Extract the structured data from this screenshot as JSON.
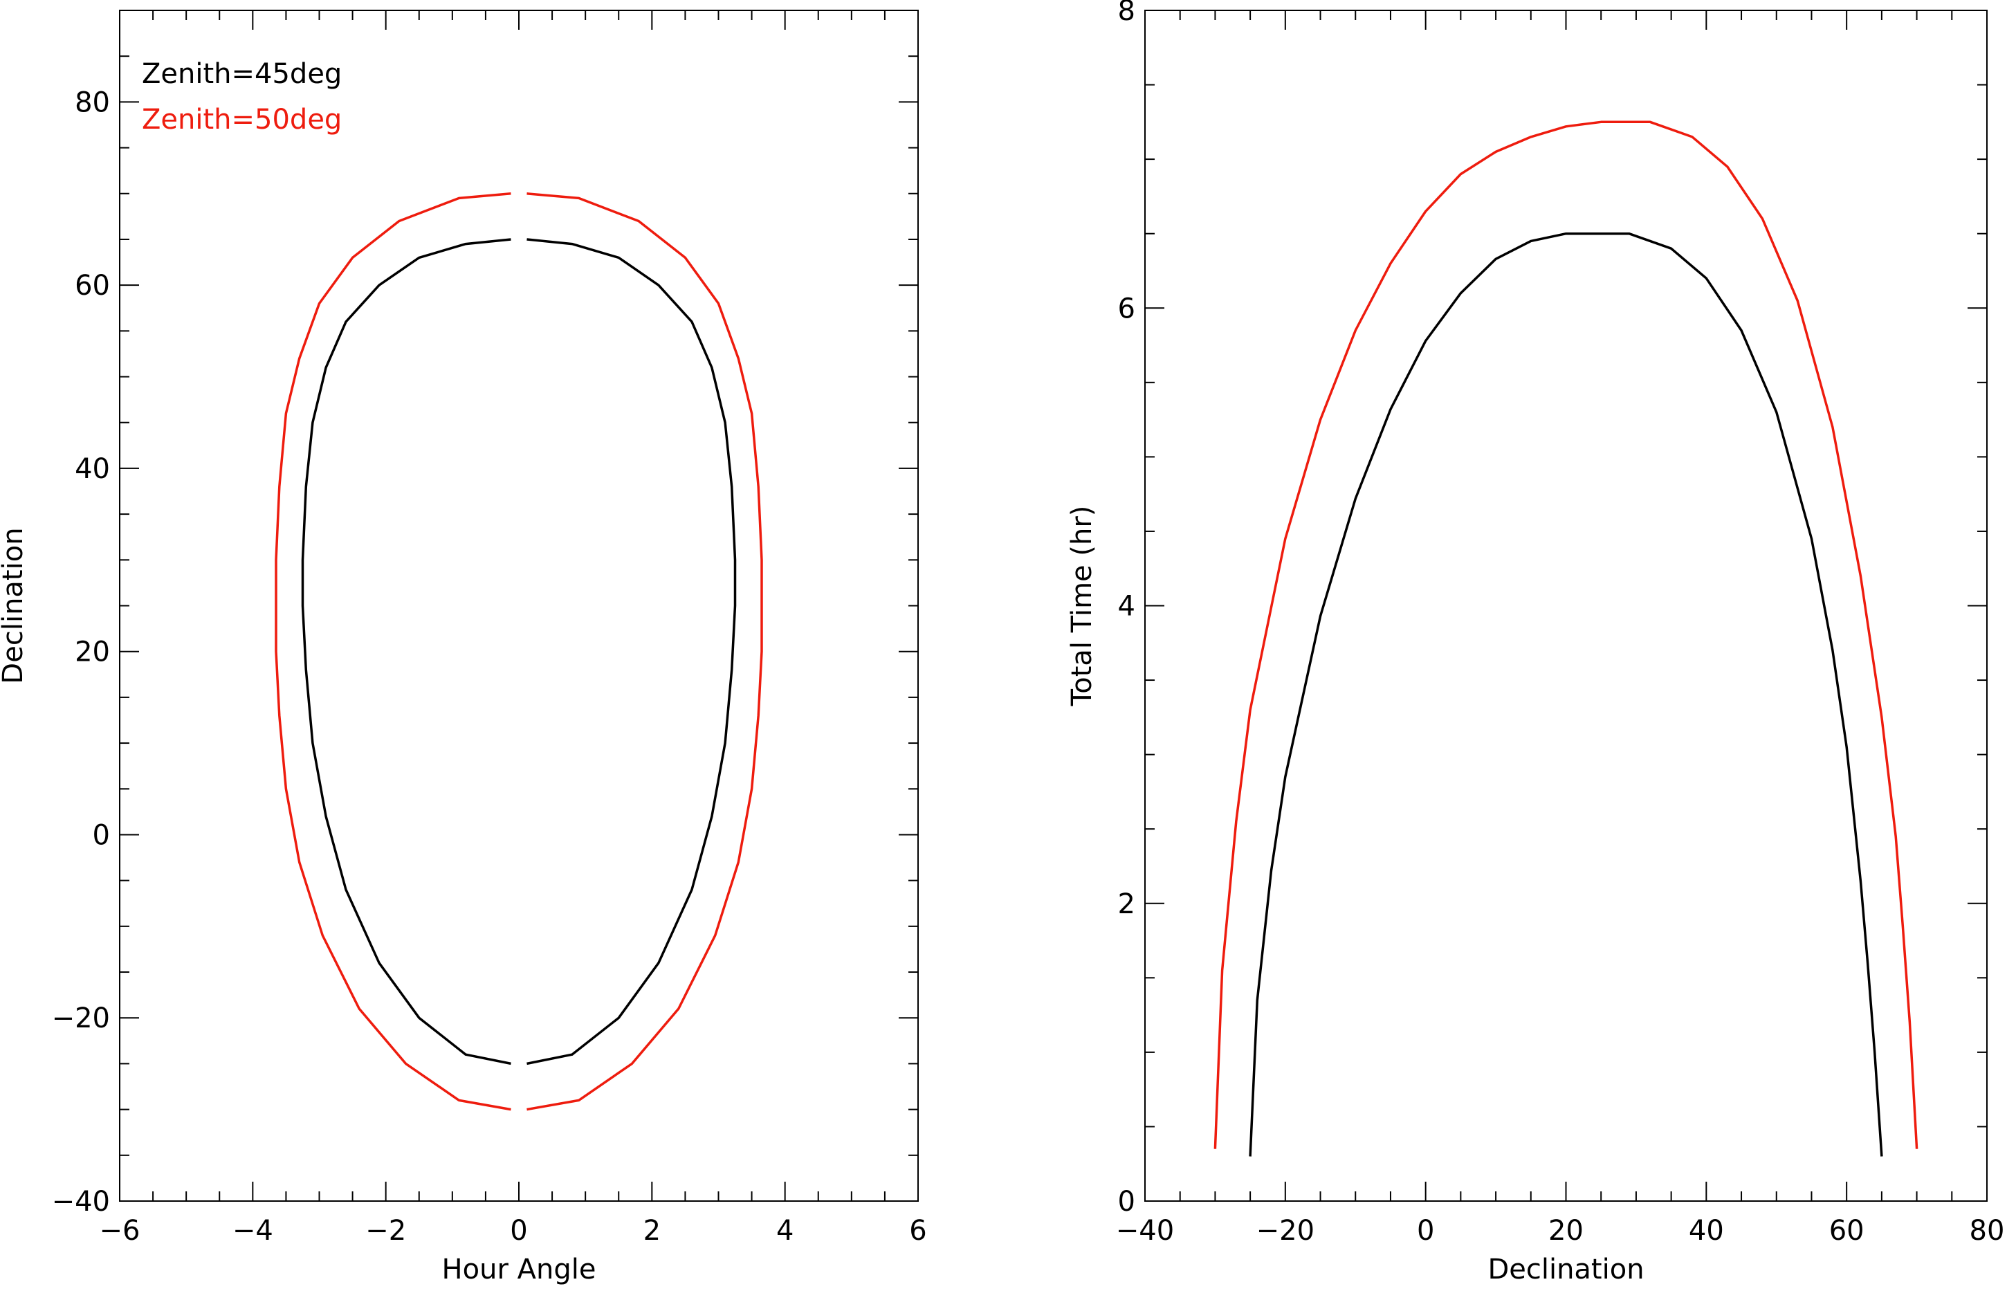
{
  "chart_data": [
    {
      "type": "line",
      "title": "",
      "xlabel": "Hour Angle",
      "ylabel": "Declination",
      "xlim": [
        -6,
        6
      ],
      "ylim": [
        -40,
        90
      ],
      "xticks": [
        -6,
        -4,
        -2,
        0,
        2,
        4,
        6
      ],
      "yticks": [
        -40,
        -20,
        0,
        20,
        40,
        60,
        80
      ],
      "xtick_labels": [
        "−6",
        "−4",
        "−2",
        "0",
        "2",
        "4",
        "6"
      ],
      "ytick_labels": [
        "−40",
        "−20",
        "0",
        "20",
        "40",
        "60",
        "80"
      ],
      "legend": {
        "placement": "top-left",
        "entries": [
          {
            "label": "Zenith=45deg",
            "color": "#000000"
          },
          {
            "label": "Zenith=50deg",
            "color": "#ee1c0e"
          }
        ]
      },
      "series": [
        {
          "color": "#000000",
          "segments": [
            {
              "x": [
                -0.12,
                -0.8,
                -1.5,
                -2.1,
                -2.6,
                -2.9,
                -3.1,
                -3.2,
                -3.25,
                -3.25,
                -3.2,
                -3.1,
                -2.9,
                -2.6,
                -2.1,
                -1.5,
                -0.8,
                -0.12
              ],
              "y": [
                -25,
                -24,
                -20,
                -14,
                -6,
                2,
                10,
                18,
                25,
                30,
                38,
                45,
                51,
                56,
                60,
                63,
                64.5,
                65
              ]
            },
            {
              "x": [
                0.12,
                0.8,
                1.5,
                2.1,
                2.6,
                2.9,
                3.1,
                3.2,
                3.25,
                3.25,
                3.2,
                3.1,
                2.9,
                2.6,
                2.1,
                1.5,
                0.8,
                0.12
              ],
              "y": [
                -25,
                -24,
                -20,
                -14,
                -6,
                2,
                10,
                18,
                25,
                30,
                38,
                45,
                51,
                56,
                60,
                63,
                64.5,
                65
              ]
            }
          ]
        },
        {
          "color": "#ee1c0e",
          "segments": [
            {
              "x": [
                -0.12,
                -0.9,
                -1.7,
                -2.4,
                -2.95,
                -3.3,
                -3.5,
                -3.6,
                -3.65,
                -3.65,
                -3.6,
                -3.5,
                -3.3,
                -3.0,
                -2.5,
                -1.8,
                -0.9,
                -0.12
              ],
              "y": [
                -30,
                -29,
                -25,
                -19,
                -11,
                -3,
                5,
                13,
                20,
                30,
                38,
                46,
                52,
                58,
                63,
                67,
                69.5,
                70
              ]
            },
            {
              "x": [
                0.12,
                0.9,
                1.7,
                2.4,
                2.95,
                3.3,
                3.5,
                3.6,
                3.65,
                3.65,
                3.6,
                3.5,
                3.3,
                3.0,
                2.5,
                1.8,
                0.9,
                0.12
              ],
              "y": [
                -30,
                -29,
                -25,
                -19,
                -11,
                -3,
                5,
                13,
                20,
                30,
                38,
                46,
                52,
                58,
                63,
                67,
                69.5,
                70
              ]
            }
          ]
        }
      ]
    },
    {
      "type": "line",
      "title": "",
      "xlabel": "Declination",
      "ylabel": "Total Time (hr)",
      "xlim": [
        -40,
        80
      ],
      "ylim": [
        0,
        8
      ],
      "xticks": [
        -40,
        -20,
        0,
        20,
        40,
        60,
        80
      ],
      "yticks": [
        0,
        2,
        4,
        6,
        8
      ],
      "xtick_labels": [
        "−40",
        "−20",
        "0",
        "20",
        "40",
        "60",
        "80"
      ],
      "ytick_labels": [
        "0",
        "2",
        "4",
        "6",
        "8"
      ],
      "series": [
        {
          "color": "#000000",
          "segments": [
            {
              "x": [
                -25,
                -24,
                -22,
                -20,
                -15,
                -10,
                -5,
                0,
                5,
                10,
                15,
                20,
                25,
                29,
                35,
                40,
                45,
                50,
                55,
                58,
                60,
                62,
                63,
                64,
                65
              ],
              "y": [
                0.3,
                1.35,
                2.22,
                2.85,
                3.93,
                4.72,
                5.32,
                5.78,
                6.1,
                6.33,
                6.45,
                6.5,
                6.5,
                6.5,
                6.4,
                6.2,
                5.85,
                5.3,
                4.45,
                3.7,
                3.05,
                2.15,
                1.6,
                1.0,
                0.3
              ]
            }
          ]
        },
        {
          "color": "#ee1c0e",
          "segments": [
            {
              "x": [
                -30,
                -29,
                -27,
                -25,
                -20,
                -15,
                -10,
                -5,
                0,
                5,
                10,
                15,
                20,
                25,
                32,
                38,
                43,
                48,
                53,
                58,
                62,
                65,
                67,
                68,
                69,
                70
              ],
              "y": [
                0.35,
                1.55,
                2.55,
                3.3,
                4.45,
                5.25,
                5.85,
                6.3,
                6.65,
                6.9,
                7.05,
                7.15,
                7.22,
                7.25,
                7.25,
                7.15,
                6.95,
                6.6,
                6.05,
                5.2,
                4.2,
                3.25,
                2.45,
                1.85,
                1.2,
                0.35
              ]
            }
          ]
        }
      ]
    }
  ]
}
